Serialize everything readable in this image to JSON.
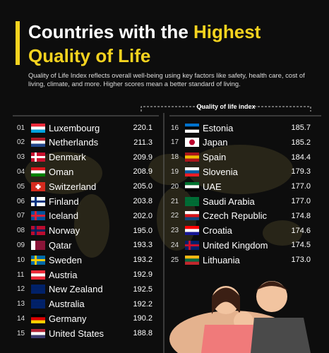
{
  "header": {
    "title_parts": [
      "Countries with the ",
      "Highest",
      "Quality of Life"
    ],
    "subtitle": "Quality of Life Index reflects overall well-being using key factors like safety, health care, cost of living, climate, and more. Higher scores mean a better standard of living.",
    "column_header": "Quality of life index"
  },
  "table": {
    "rows": [
      [
        "01",
        "Luxembourg",
        "220.1"
      ],
      [
        "02",
        "Netherlands",
        "211.3"
      ],
      [
        "03",
        "Denmark",
        "209.9"
      ],
      [
        "04",
        "Oman",
        "208.9"
      ],
      [
        "05",
        "Switzerland",
        "205.0"
      ],
      [
        "06",
        "Finland",
        "203.8"
      ],
      [
        "07",
        "Iceland",
        "202.0"
      ],
      [
        "08",
        "Norway",
        "195.0"
      ],
      [
        "09",
        "Qatar",
        "193.3"
      ],
      [
        "10",
        "Sweden",
        "193.2"
      ],
      [
        "11",
        "Austria",
        "192.9"
      ],
      [
        "12",
        "New Zealand",
        "192.5"
      ],
      [
        "13",
        "Australia",
        "192.2"
      ],
      [
        "14",
        "Germany",
        "190.2"
      ],
      [
        "15",
        "United States",
        "188.8"
      ],
      [
        "16",
        "Estonia",
        "185.7"
      ],
      [
        "17",
        "Japan",
        "185.2"
      ],
      [
        "18",
        "Spain",
        "184.4"
      ],
      [
        "19",
        "Slovenia",
        "179.3"
      ],
      [
        "20",
        "UAE",
        "177.0"
      ],
      [
        "21",
        "Saudi Arabia",
        "177.0"
      ],
      [
        "22",
        "Czech Republic",
        "174.8"
      ],
      [
        "23",
        "Croatia",
        "174.6"
      ],
      [
        "24",
        "United Kingdom",
        "174.5"
      ],
      [
        "25",
        "Lithuania",
        "173.0"
      ]
    ]
  }
}
